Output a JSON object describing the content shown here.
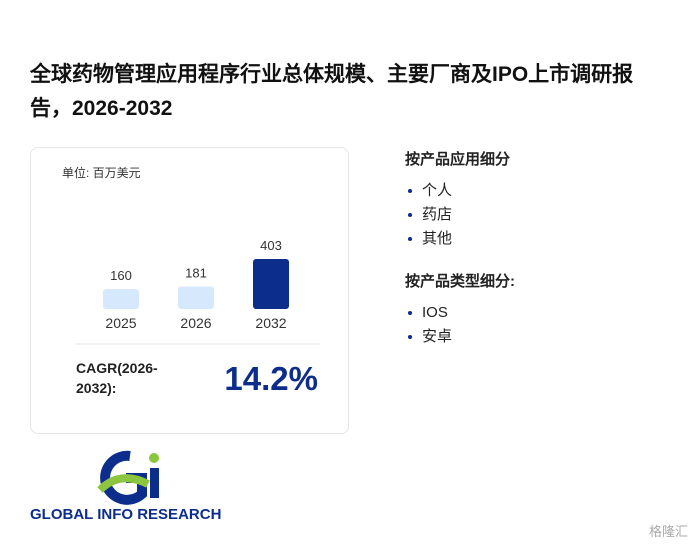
{
  "title": "全球药物管理应用程序行业总体规模、主要厂商及IPO上市调研报告，2026-2032",
  "chart_data": {
    "type": "bar",
    "unit_label": "单位: 百万美元",
    "categories": [
      "2025",
      "2026",
      "2032"
    ],
    "values": [
      160,
      181,
      403
    ],
    "colors": [
      "#d6e8fb",
      "#d6e8fb",
      "#0d2d8c"
    ],
    "cagr_label": "CAGR(2026-2032):",
    "cagr": "14.2%"
  },
  "segments": [
    {
      "heading": "按产品应用细分",
      "items": [
        "个人",
        "药店",
        "其他"
      ]
    },
    {
      "heading": "按产品类型细分:",
      "items": [
        "IOS",
        "安卓"
      ]
    }
  ],
  "logo": {
    "text": "GLOBAL INFO RESEARCH"
  },
  "watermark": "格隆汇"
}
